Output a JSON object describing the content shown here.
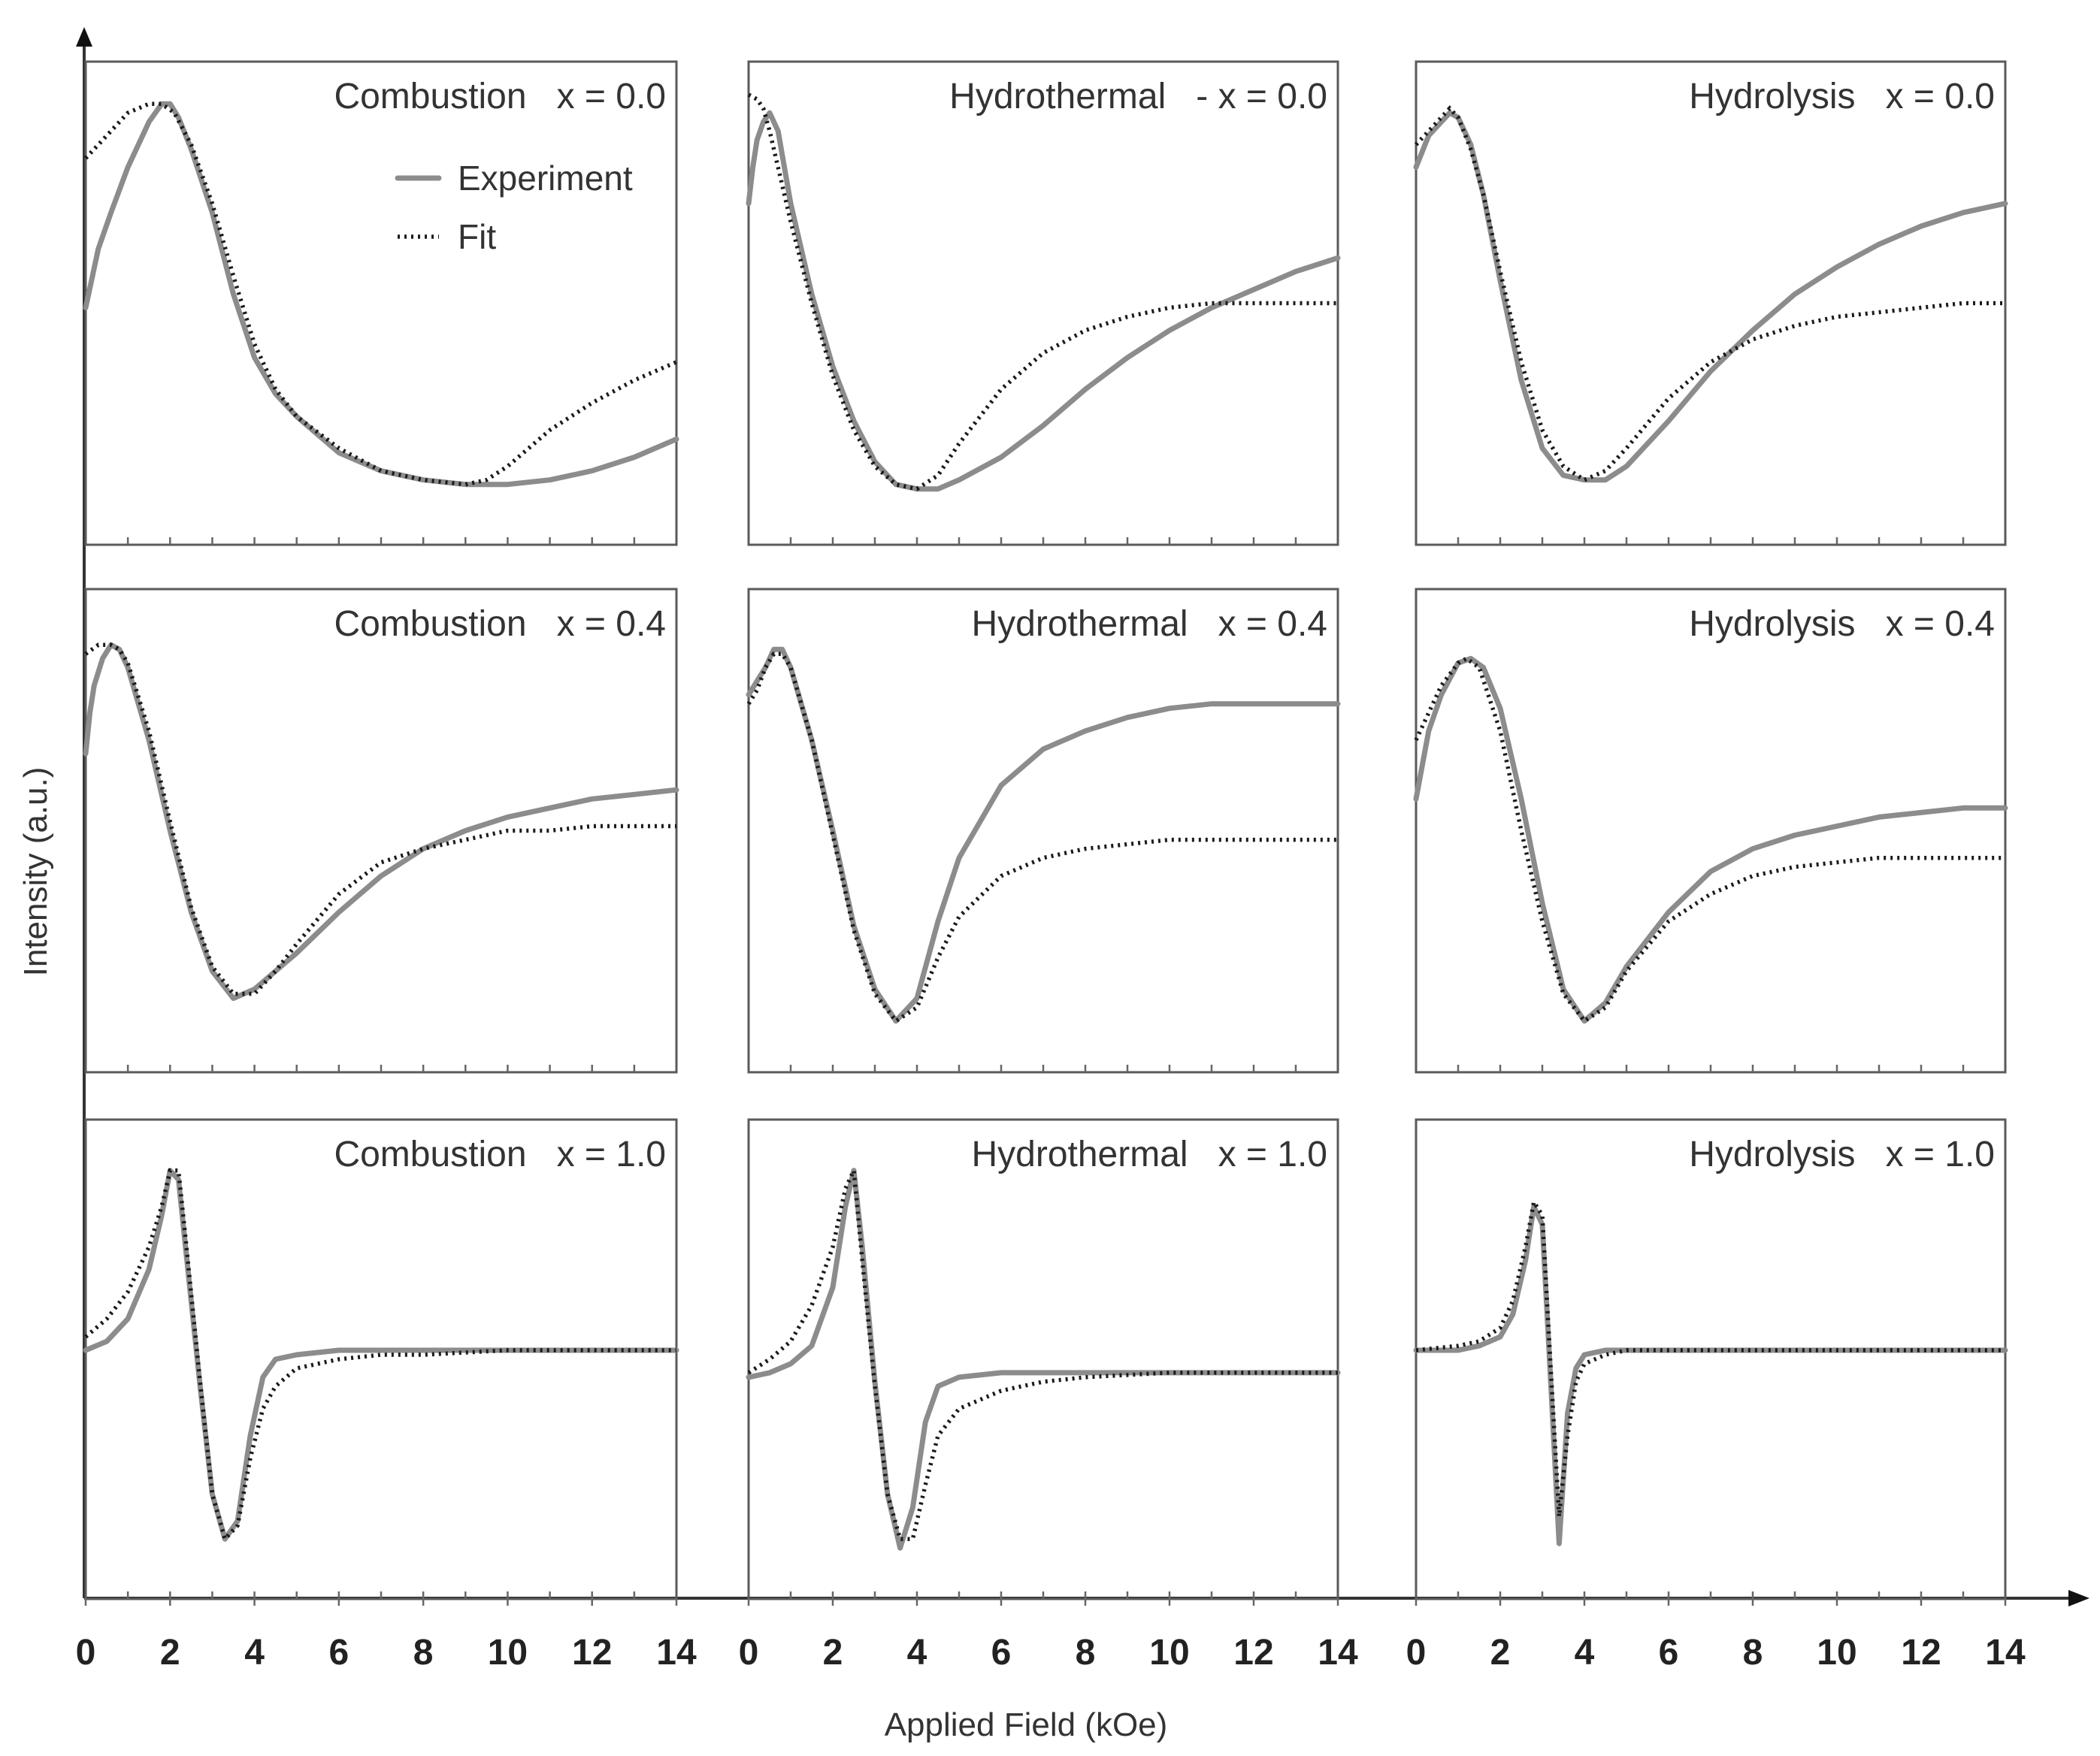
{
  "chart_data": {
    "type": "line",
    "layout": "3x3 small multiples",
    "xlabel": "Applied Field (kOe)",
    "ylabel": "Intensity (a.u.)",
    "xlim": [
      0,
      14
    ],
    "x_ticks": [
      "0",
      "2",
      "4",
      "6",
      "8",
      "10",
      "12",
      "14"
    ],
    "legend": {
      "experiment": "Experiment",
      "fit": "Fit"
    },
    "colors": {
      "experiment": "#8c8c8c",
      "fit": "#1a1a1a",
      "frame": "#5a5a5a",
      "text": "#333333"
    },
    "panels": [
      {
        "method": "Combustion",
        "x_label": "x = 0.0",
        "ylim": [
          0,
          1
        ],
        "experiment": {
          "x": [
            0,
            0.3,
            0.6,
            1,
            1.5,
            1.8,
            2,
            2.2,
            2.5,
            3,
            3.5,
            4,
            4.5,
            5,
            6,
            7,
            8,
            9,
            10,
            11,
            12,
            13,
            14
          ],
          "y": [
            0.49,
            0.62,
            0.7,
            0.8,
            0.9,
            0.94,
            0.94,
            0.91,
            0.84,
            0.7,
            0.52,
            0.38,
            0.3,
            0.25,
            0.17,
            0.13,
            0.11,
            0.1,
            0.1,
            0.11,
            0.13,
            0.16,
            0.2
          ]
        },
        "fit": {
          "x": [
            0,
            0.5,
            1,
            1.5,
            1.8,
            2.1,
            2.5,
            3,
            3.5,
            4,
            4.5,
            5,
            6,
            7,
            8,
            9,
            9.5,
            10,
            11,
            12,
            13,
            14
          ],
          "y": [
            0.82,
            0.87,
            0.92,
            0.94,
            0.94,
            0.92,
            0.85,
            0.72,
            0.56,
            0.41,
            0.31,
            0.25,
            0.18,
            0.13,
            0.11,
            0.1,
            0.11,
            0.14,
            0.22,
            0.28,
            0.33,
            0.37
          ]
        }
      },
      {
        "method": "Hydrothermal",
        "x_label": "- x = 0.0",
        "ylim": [
          0,
          1
        ],
        "experiment": {
          "x": [
            0,
            0.1,
            0.2,
            0.35,
            0.5,
            0.7,
            1,
            1.5,
            2,
            2.5,
            3,
            3.5,
            4,
            4.5,
            5,
            6,
            7,
            8,
            9,
            10,
            11,
            12,
            13,
            14
          ],
          "y": [
            0.72,
            0.8,
            0.86,
            0.9,
            0.92,
            0.88,
            0.72,
            0.52,
            0.36,
            0.24,
            0.15,
            0.1,
            0.09,
            0.09,
            0.11,
            0.16,
            0.23,
            0.31,
            0.38,
            0.44,
            0.49,
            0.53,
            0.57,
            0.6
          ]
        },
        "fit": {
          "x": [
            0,
            0.2,
            0.35,
            0.5,
            0.7,
            1,
            1.5,
            2,
            2.5,
            3,
            3.5,
            4,
            4.5,
            5,
            6,
            7,
            8,
            9,
            10,
            11,
            12,
            13,
            14
          ],
          "y": [
            0.96,
            0.95,
            0.93,
            0.88,
            0.8,
            0.68,
            0.5,
            0.34,
            0.22,
            0.14,
            0.1,
            0.09,
            0.12,
            0.19,
            0.31,
            0.39,
            0.44,
            0.47,
            0.49,
            0.5,
            0.5,
            0.5,
            0.5
          ]
        }
      },
      {
        "method": "Hydrolysis",
        "x_label": "x = 0.0",
        "ylim": [
          0,
          1
        ],
        "experiment": {
          "x": [
            0,
            0.3,
            0.6,
            0.8,
            1,
            1.3,
            1.6,
            2,
            2.5,
            3,
            3.5,
            4,
            4.5,
            5,
            6,
            7,
            8,
            9,
            10,
            11,
            12,
            13,
            14
          ],
          "y": [
            0.8,
            0.87,
            0.9,
            0.92,
            0.91,
            0.85,
            0.74,
            0.55,
            0.33,
            0.18,
            0.12,
            0.11,
            0.11,
            0.14,
            0.24,
            0.35,
            0.44,
            0.52,
            0.58,
            0.63,
            0.67,
            0.7,
            0.72
          ]
        },
        "fit": {
          "x": [
            0,
            0.3,
            0.6,
            0.8,
            1,
            1.3,
            1.6,
            2,
            2.5,
            3,
            3.5,
            4,
            4.5,
            5,
            6,
            7,
            8,
            9,
            10,
            11,
            12,
            13,
            14
          ],
          "y": [
            0.85,
            0.88,
            0.91,
            0.93,
            0.91,
            0.84,
            0.74,
            0.57,
            0.37,
            0.22,
            0.14,
            0.11,
            0.13,
            0.18,
            0.29,
            0.37,
            0.42,
            0.45,
            0.47,
            0.48,
            0.49,
            0.5,
            0.5
          ]
        }
      },
      {
        "method": "Combustion",
        "x_label": "x = 0.4",
        "ylim": [
          0,
          1
        ],
        "experiment": {
          "x": [
            0,
            0.1,
            0.2,
            0.4,
            0.6,
            0.8,
            1,
            1.5,
            2,
            2.5,
            3,
            3.5,
            4,
            4.5,
            5,
            6,
            7,
            8,
            9,
            10,
            11,
            12,
            13,
            14
          ],
          "y": [
            0.67,
            0.76,
            0.82,
            0.88,
            0.91,
            0.9,
            0.86,
            0.7,
            0.5,
            0.32,
            0.19,
            0.13,
            0.15,
            0.19,
            0.23,
            0.32,
            0.4,
            0.46,
            0.5,
            0.53,
            0.55,
            0.57,
            0.58,
            0.59
          ]
        },
        "fit": {
          "x": [
            0,
            0.3,
            0.6,
            0.8,
            1,
            1.5,
            2,
            2.5,
            3,
            3.5,
            4,
            4.5,
            5,
            6,
            7,
            8,
            9,
            10,
            11,
            12,
            13,
            14
          ],
          "y": [
            0.89,
            0.91,
            0.91,
            0.9,
            0.87,
            0.72,
            0.52,
            0.33,
            0.2,
            0.14,
            0.14,
            0.19,
            0.25,
            0.36,
            0.43,
            0.46,
            0.48,
            0.5,
            0.5,
            0.51,
            0.51,
            0.51
          ]
        }
      },
      {
        "method": "Hydrothermal",
        "x_label": "x = 0.4",
        "ylim": [
          0,
          1
        ],
        "experiment": {
          "x": [
            0,
            0.2,
            0.4,
            0.6,
            0.8,
            1,
            1.5,
            2,
            2.5,
            3,
            3.5,
            4,
            4.5,
            5,
            6,
            7,
            8,
            9,
            10,
            11,
            12,
            13,
            14
          ],
          "y": [
            0.8,
            0.83,
            0.86,
            0.9,
            0.9,
            0.86,
            0.7,
            0.5,
            0.29,
            0.15,
            0.08,
            0.13,
            0.3,
            0.44,
            0.6,
            0.68,
            0.72,
            0.75,
            0.77,
            0.78,
            0.78,
            0.78,
            0.78
          ]
        },
        "fit": {
          "x": [
            0,
            0.2,
            0.4,
            0.6,
            0.8,
            1,
            1.5,
            2,
            2.5,
            3,
            3.5,
            4,
            4.5,
            5,
            6,
            7,
            8,
            9,
            10,
            11,
            12,
            13,
            14
          ],
          "y": [
            0.78,
            0.81,
            0.86,
            0.89,
            0.89,
            0.86,
            0.7,
            0.49,
            0.28,
            0.14,
            0.08,
            0.11,
            0.22,
            0.31,
            0.4,
            0.44,
            0.46,
            0.47,
            0.48,
            0.48,
            0.48,
            0.48,
            0.48
          ]
        }
      },
      {
        "method": "Hydrolysis",
        "x_label": "x = 0.4",
        "ylim": [
          0,
          1
        ],
        "experiment": {
          "x": [
            0,
            0.3,
            0.6,
            1,
            1.3,
            1.6,
            2,
            2.5,
            3,
            3.5,
            4,
            4.5,
            5,
            6,
            7,
            8,
            9,
            10,
            11,
            12,
            13,
            14
          ],
          "y": [
            0.57,
            0.72,
            0.8,
            0.87,
            0.88,
            0.86,
            0.77,
            0.57,
            0.34,
            0.15,
            0.08,
            0.12,
            0.2,
            0.32,
            0.41,
            0.46,
            0.49,
            0.51,
            0.53,
            0.54,
            0.55,
            0.55
          ]
        },
        "fit": {
          "x": [
            0,
            0.3,
            0.6,
            1,
            1.2,
            1.5,
            2,
            2.5,
            3,
            3.5,
            4,
            4.5,
            5,
            6,
            7,
            8,
            9,
            10,
            11,
            12,
            13,
            14
          ],
          "y": [
            0.7,
            0.76,
            0.82,
            0.87,
            0.88,
            0.86,
            0.72,
            0.5,
            0.3,
            0.14,
            0.08,
            0.11,
            0.19,
            0.3,
            0.36,
            0.4,
            0.42,
            0.43,
            0.44,
            0.44,
            0.44,
            0.44
          ]
        }
      },
      {
        "method": "Combustion",
        "x_label": "x = 1.0",
        "ylim": [
          0,
          1
        ],
        "experiment": {
          "x": [
            0,
            0.5,
            1,
            1.5,
            1.8,
            2,
            2.2,
            2.4,
            2.7,
            3,
            3.3,
            3.6,
            3.9,
            4.2,
            4.5,
            5,
            6,
            7,
            8,
            10,
            12,
            14
          ],
          "y": [
            0.52,
            0.54,
            0.59,
            0.7,
            0.82,
            0.92,
            0.9,
            0.72,
            0.45,
            0.2,
            0.1,
            0.14,
            0.33,
            0.46,
            0.5,
            0.51,
            0.52,
            0.52,
            0.52,
            0.52,
            0.52,
            0.52
          ]
        },
        "fit": {
          "x": [
            0,
            0.5,
            1,
            1.5,
            1.8,
            2,
            2.2,
            2.4,
            2.7,
            3,
            3.3,
            3.6,
            3.9,
            4.2,
            4.5,
            5,
            6,
            7,
            8,
            10,
            12,
            14
          ],
          "y": [
            0.55,
            0.59,
            0.65,
            0.75,
            0.84,
            0.92,
            0.92,
            0.74,
            0.46,
            0.2,
            0.1,
            0.13,
            0.28,
            0.39,
            0.44,
            0.48,
            0.5,
            0.51,
            0.51,
            0.52,
            0.52,
            0.52
          ]
        }
      },
      {
        "method": "Hydrothermal",
        "x_label": "x = 1.0",
        "ylim": [
          0,
          1
        ],
        "experiment": {
          "x": [
            0,
            0.5,
            1,
            1.5,
            2,
            2.3,
            2.5,
            2.7,
            3,
            3.3,
            3.6,
            3.9,
            4.2,
            4.5,
            5,
            6,
            7,
            8,
            10,
            12,
            14
          ],
          "y": [
            0.46,
            0.47,
            0.49,
            0.53,
            0.66,
            0.84,
            0.92,
            0.75,
            0.45,
            0.2,
            0.08,
            0.17,
            0.36,
            0.44,
            0.46,
            0.47,
            0.47,
            0.47,
            0.47,
            0.47,
            0.47
          ]
        },
        "fit": {
          "x": [
            0,
            0.5,
            1,
            1.5,
            2,
            2.3,
            2.5,
            2.7,
            3,
            3.3,
            3.6,
            3.9,
            4.2,
            4.5,
            5,
            6,
            7,
            8,
            10,
            12,
            14
          ],
          "y": [
            0.47,
            0.5,
            0.54,
            0.62,
            0.75,
            0.88,
            0.92,
            0.72,
            0.44,
            0.2,
            0.1,
            0.1,
            0.22,
            0.33,
            0.39,
            0.43,
            0.45,
            0.46,
            0.47,
            0.47,
            0.47
          ]
        }
      },
      {
        "method": "Hydrolysis",
        "x_label": "x = 1.0",
        "ylim": [
          0,
          1
        ],
        "experiment": {
          "x": [
            0,
            1,
            1.5,
            2,
            2.3,
            2.6,
            2.8,
            3,
            3.2,
            3.4,
            3.6,
            3.8,
            4,
            4.5,
            5,
            6,
            8,
            10,
            12,
            14
          ],
          "y": [
            0.52,
            0.52,
            0.53,
            0.55,
            0.6,
            0.72,
            0.84,
            0.8,
            0.45,
            0.09,
            0.38,
            0.48,
            0.51,
            0.52,
            0.52,
            0.52,
            0.52,
            0.52,
            0.52,
            0.52
          ]
        },
        "fit": {
          "x": [
            0,
            1,
            1.5,
            2,
            2.3,
            2.6,
            2.8,
            3,
            3.2,
            3.4,
            3.6,
            3.8,
            4,
            4.5,
            5,
            6,
            8,
            10,
            12,
            14
          ],
          "y": [
            0.52,
            0.53,
            0.54,
            0.57,
            0.63,
            0.75,
            0.85,
            0.82,
            0.48,
            0.15,
            0.33,
            0.45,
            0.49,
            0.51,
            0.52,
            0.52,
            0.52,
            0.52,
            0.52,
            0.52
          ]
        }
      }
    ]
  }
}
